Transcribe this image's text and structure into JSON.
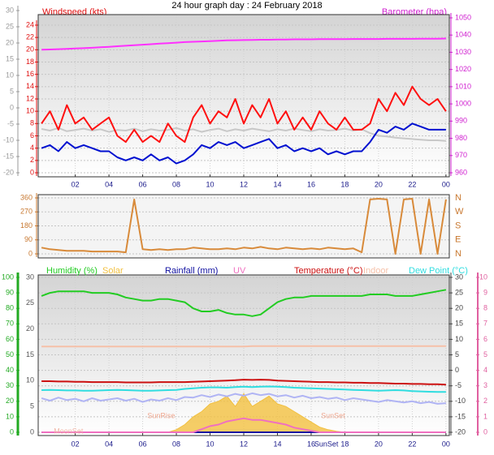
{
  "chart_data": [
    {
      "type": "line",
      "title": "24 hour graph day : 24 February 2018",
      "ylabel": "Windspeed (kts)",
      "y2label": "Barometer (hpa)",
      "grid": true,
      "x": [
        0,
        0.5,
        1,
        1.5,
        2,
        2.5,
        3,
        3.5,
        4,
        4.5,
        5,
        5.5,
        6,
        6.5,
        7,
        7.5,
        8,
        8.5,
        9,
        9.5,
        10,
        10.5,
        11,
        11.5,
        12,
        12.5,
        13,
        13.5,
        14,
        14.5,
        15,
        15.5,
        16,
        16.5,
        17,
        17.5,
        18,
        18.5,
        19,
        19.5,
        20,
        20.5,
        21,
        21.5,
        22,
        22.5,
        23,
        23.5,
        24
      ],
      "xlim": [
        -0.2,
        24.2
      ],
      "xticks": [
        {
          "value": 2,
          "label": "02"
        },
        {
          "value": 4,
          "label": "04"
        },
        {
          "value": 6,
          "label": "06"
        },
        {
          "value": 8,
          "label": "08"
        },
        10,
        12,
        14,
        16,
        18,
        20,
        22,
        {
          "value": 24,
          "label": "00"
        }
      ],
      "ylim": [
        0,
        24
      ],
      "yticks": [
        0,
        2,
        4,
        6,
        8,
        10,
        12,
        14,
        16,
        18,
        20,
        22,
        24
      ],
      "y2lim": [
        960,
        1050
      ],
      "y2ticks": [
        960,
        970,
        980,
        990,
        1000,
        1010,
        1020,
        1030,
        1040,
        1050
      ],
      "y3lim": [
        -20,
        30
      ],
      "y3ticks": [
        -20,
        -15,
        -10,
        -5,
        0,
        5,
        10,
        15,
        20,
        25,
        30
      ],
      "series": [
        {
          "color": "#c8c8c8",
          "axis": "y3",
          "values": [
            -6.5,
            -7,
            -6.2,
            -7.2,
            -6.8,
            -6.4,
            -7,
            -6.6,
            -7.4,
            -6.8,
            -7,
            -6.4,
            -7.2,
            -6.6,
            -7,
            -6.8,
            -6.2,
            -7,
            -6.6,
            -7.4,
            -6.8,
            -6.4,
            -7.2,
            -6.6,
            -7,
            -6.4,
            -6.8,
            -7.2,
            -6.6,
            -7,
            -6.4,
            -6.8,
            -7.2,
            -6.6,
            -7,
            -6.8,
            -6.4,
            -7,
            -6.6,
            -7.8,
            -8.6,
            -8.8,
            -9.2,
            -9.4,
            -9.6,
            -9.8,
            -10,
            -10,
            -10.2
          ]
        },
        {
          "color": "#ff1010",
          "values": [
            8,
            10,
            7,
            11,
            8,
            9,
            7,
            8,
            9,
            6,
            5,
            7,
            5,
            6,
            5,
            8,
            6,
            5,
            9,
            11,
            8,
            10,
            9,
            12,
            8,
            11,
            9,
            12,
            8,
            10,
            7,
            9,
            7,
            10,
            8,
            7,
            9,
            7,
            7,
            8,
            12,
            10,
            13,
            11,
            14,
            12,
            11,
            12,
            10
          ]
        },
        {
          "color": "#0010d0",
          "values": [
            4,
            4.5,
            3.5,
            5,
            4,
            4.5,
            4,
            3.5,
            3.5,
            2.5,
            2,
            2.5,
            2,
            3,
            2,
            2.5,
            1.5,
            2,
            3,
            4.5,
            4,
            5,
            4.5,
            5,
            4,
            4.5,
            5,
            5.5,
            4,
            4.5,
            3.5,
            4,
            3.5,
            4,
            3,
            3.5,
            3,
            3.5,
            3.5,
            5,
            7,
            6.5,
            7.5,
            7,
            8,
            7.5,
            7,
            7,
            7
          ]
        },
        {
          "color": "#ff30ff",
          "axis": "y2",
          "values": [
            1031.5,
            1031.6,
            1031.8,
            1032,
            1032.2,
            1032.4,
            1032.6,
            1032.9,
            1033.2,
            1033.5,
            1033.8,
            1034.1,
            1034.4,
            1034.7,
            1035,
            1035.3,
            1035.6,
            1035.9,
            1036.1,
            1036.3,
            1036.5,
            1036.7,
            1036.9,
            1037,
            1037.1,
            1037.2,
            1037.3,
            1037.3,
            1037.4,
            1037.4,
            1037.5,
            1037.5,
            1037.5,
            1037.6,
            1037.6,
            1037.6,
            1037.6,
            1037.7,
            1037.7,
            1037.7,
            1037.7,
            1037.8,
            1037.8,
            1037.8,
            1037.8,
            1037.9,
            1037.9,
            1037.9,
            1038
          ]
        }
      ]
    },
    {
      "type": "line",
      "grid": true,
      "x": [
        0,
        0.5,
        1,
        1.5,
        2,
        2.5,
        3,
        3.5,
        4,
        4.5,
        5,
        5.5,
        6,
        6.5,
        7,
        7.5,
        8,
        8.5,
        9,
        9.5,
        10,
        10.5,
        11,
        11.5,
        12,
        12.5,
        13,
        13.5,
        14,
        14.5,
        15,
        15.5,
        16,
        16.5,
        17,
        17.5,
        18,
        18.5,
        19,
        19.5,
        20,
        20.5,
        21,
        21.5,
        22,
        22.5,
        23,
        23.5,
        24
      ],
      "xlim": [
        -0.2,
        24.2
      ],
      "ylim": [
        0,
        360
      ],
      "yticks": [
        0,
        90,
        180,
        270,
        360
      ],
      "y2lim": [
        0,
        360
      ],
      "y2ticks": [
        {
          "value": 0,
          "label": "N"
        },
        {
          "value": 90,
          "label": "E"
        },
        {
          "value": 180,
          "label": "S"
        },
        {
          "value": 270,
          "label": "W"
        },
        {
          "value": 360,
          "label": "N"
        }
      ],
      "series": [
        {
          "color": "#d88a3a",
          "values": [
            40,
            30,
            25,
            20,
            20,
            20,
            15,
            15,
            15,
            15,
            10,
            350,
            30,
            25,
            30,
            25,
            30,
            30,
            40,
            35,
            30,
            30,
            35,
            30,
            40,
            35,
            45,
            35,
            30,
            40,
            35,
            30,
            35,
            30,
            40,
            35,
            30,
            35,
            10,
            350,
            355,
            350,
            0,
            350,
            355,
            0,
            350,
            0,
            350
          ]
        }
      ]
    },
    {
      "type": "line",
      "grid": true,
      "x": [
        0,
        0.5,
        1,
        1.5,
        2,
        2.5,
        3,
        3.5,
        4,
        4.5,
        5,
        5.5,
        6,
        6.5,
        7,
        7.5,
        8,
        8.5,
        9,
        9.5,
        10,
        10.5,
        11,
        11.5,
        12,
        12.5,
        13,
        13.5,
        14,
        14.5,
        15,
        15.5,
        16,
        16.5,
        17,
        17.5,
        18,
        18.5,
        19,
        19.5,
        20,
        20.5,
        21,
        21.5,
        22,
        22.5,
        23,
        23.5,
        24
      ],
      "xlim": [
        -0.2,
        24.2
      ],
      "xticks": [
        {
          "value": 2,
          "label": "02"
        },
        {
          "value": 4,
          "label": "04"
        },
        {
          "value": 6,
          "label": "06"
        },
        {
          "value": 8,
          "label": "08"
        },
        10,
        12,
        14,
        16,
        18,
        20,
        22,
        {
          "value": 24,
          "label": "00"
        }
      ],
      "ylim": [
        0,
        100
      ],
      "yticks": [
        0,
        10,
        20,
        30,
        40,
        50,
        60,
        70,
        80,
        90,
        100
      ],
      "y2lim": [
        -20,
        30
      ],
      "y2ticks": [
        -20,
        -15,
        -10,
        -5,
        0,
        5,
        10,
        15,
        20,
        25,
        30
      ],
      "y3lim": [
        0,
        30
      ],
      "y3ticks": [
        0,
        5,
        10,
        15,
        20,
        25,
        30
      ],
      "y4lim": [
        0,
        10
      ],
      "y4ticks": [
        0,
        1,
        2,
        3,
        4,
        5,
        6,
        7,
        8,
        9,
        10
      ],
      "annotations": [
        {
          "text": "MoonSet",
          "x": 1.6,
          "color": "#f0b8a8"
        },
        {
          "text": "SunRise",
          "x": 7.1,
          "color": "#f0a890"
        },
        {
          "text": "SunSet",
          "x": 17.3,
          "color": "#f0a890"
        },
        {
          "text": "SunSet",
          "x": 16.9,
          "color": "#1a1a8a"
        }
      ],
      "series": [
        {
          "name": "Humidity (%)",
          "color": "#22cc22",
          "values": [
            88,
            90,
            91,
            91,
            91,
            91,
            90,
            90,
            90,
            89,
            87,
            86,
            85,
            85,
            86,
            86,
            85,
            84,
            80,
            78,
            78,
            79,
            77,
            76,
            76,
            75,
            76,
            80,
            84,
            86,
            87,
            87,
            88,
            88,
            88,
            88,
            88,
            88,
            88,
            89,
            89,
            89,
            88,
            88,
            88,
            89,
            90,
            91,
            92
          ]
        },
        {
          "name": "Solar",
          "color": "#f2c040",
          "axis": "y3",
          "area": true,
          "values": [
            0,
            0,
            0,
            0,
            0,
            0,
            0,
            0,
            0,
            0,
            0,
            0,
            0,
            0,
            0,
            0,
            0.5,
            1.5,
            3,
            4,
            5.5,
            6,
            7,
            5,
            7.5,
            5,
            6,
            7,
            5.5,
            5,
            4,
            3,
            2,
            1,
            0.5,
            0.2,
            0,
            0,
            0,
            0,
            0,
            0,
            0,
            0,
            0,
            0,
            0,
            0,
            0
          ]
        },
        {
          "name": "Rainfall (mm)",
          "color": "#1010a0",
          "axis": "y3",
          "values": [
            0,
            0,
            0,
            0,
            0,
            0,
            0,
            0,
            0,
            0,
            0,
            0,
            0,
            0,
            0,
            0,
            0,
            0,
            0,
            0,
            0,
            0,
            0,
            0,
            0,
            0,
            0,
            0,
            0,
            0,
            0,
            0,
            0,
            0,
            0,
            0,
            0,
            0,
            0,
            0,
            0,
            0,
            0,
            0,
            0,
            0,
            0,
            0,
            0
          ]
        },
        {
          "name": "UV",
          "color": "#f070c0",
          "axis": "y4",
          "values": [
            0,
            0,
            0,
            0,
            0,
            0,
            0,
            0,
            0,
            0,
            0,
            0,
            0,
            0,
            0,
            0,
            0,
            0,
            0,
            0.2,
            0.4,
            0.5,
            0.7,
            0.8,
            0.9,
            0.8,
            0.8,
            0.7,
            0.6,
            0.5,
            0.3,
            0.2,
            0.1,
            0,
            0,
            0,
            0,
            0,
            0,
            0,
            0,
            0,
            0,
            0,
            0,
            0,
            0,
            0,
            0
          ]
        },
        {
          "name": "Temperature (°C)",
          "color": "#cc1010",
          "axis": "y2",
          "values": [
            -3.5,
            -3.5,
            -3.6,
            -3.6,
            -3.7,
            -3.7,
            -3.8,
            -3.8,
            -3.8,
            -3.8,
            -3.9,
            -3.9,
            -3.9,
            -3.9,
            -3.8,
            -3.8,
            -3.8,
            -3.8,
            -3.7,
            -3.6,
            -3.5,
            -3.4,
            -3.3,
            -3.2,
            -3.0,
            -3.1,
            -3.0,
            -3.1,
            -3.3,
            -3.4,
            -3.5,
            -3.6,
            -3.7,
            -3.8,
            -3.8,
            -3.9,
            -3.9,
            -4.0,
            -4.0,
            -4.1,
            -4.1,
            -4.2,
            -4.3,
            -4.3,
            -4.4,
            -4.4,
            -4.5,
            -4.5,
            -4.6
          ]
        },
        {
          "name": "Indoor",
          "color": "#f6c0a8",
          "axis": "y2",
          "values": [
            7.7,
            7.7,
            7.7,
            7.7,
            7.7,
            7.7,
            7.7,
            7.7,
            7.7,
            7.7,
            7.7,
            7.7,
            7.7,
            7.7,
            7.7,
            7.7,
            7.7,
            7.7,
            7.7,
            7.7,
            7.7,
            7.7,
            7.7,
            7.7,
            7.7,
            7.8,
            7.8,
            7.8,
            7.8,
            7.8,
            7.8,
            7.8,
            7.8,
            7.8,
            7.8,
            7.8,
            7.8,
            7.8,
            7.8,
            7.8,
            7.8,
            7.8,
            7.8,
            7.8,
            7.8,
            7.8,
            7.8,
            7.8,
            7.8
          ]
        },
        {
          "name": "Dew Point (°C)",
          "color": "#30dde0",
          "axis": "y2",
          "values": [
            -6.4,
            -6.3,
            -6.4,
            -6.5,
            -6.5,
            -6.6,
            -6.6,
            -6.5,
            -6.4,
            -6.3,
            -6.4,
            -6.5,
            -6.6,
            -6.6,
            -6.5,
            -6.4,
            -6.3,
            -6.0,
            -5.8,
            -5.6,
            -5.5,
            -5.5,
            -5.6,
            -5.4,
            -5.3,
            -5.4,
            -5.3,
            -5.2,
            -5.3,
            -5.4,
            -5.6,
            -5.7,
            -5.8,
            -5.9,
            -6.0,
            -6.1,
            -6.2,
            -6.3,
            -6.4,
            -6.5,
            -6.6,
            -6.5,
            -6.4,
            -6.5,
            -6.7,
            -6.8,
            -6.9,
            -7.0,
            -7.0
          ]
        },
        {
          "color": "#b0b4f4",
          "axis": "y2",
          "values": [
            -9.0,
            -9.8,
            -8.8,
            -9.6,
            -9.2,
            -10.0,
            -9.0,
            -9.8,
            -9.4,
            -9.0,
            -9.8,
            -9.2,
            -10.2,
            -9.4,
            -9.8,
            -9.0,
            -9.6,
            -8.6,
            -8.8,
            -8.0,
            -8.6,
            -7.8,
            -8.4,
            -7.6,
            -8.2,
            -7.4,
            -8.0,
            -7.6,
            -8.4,
            -8.0,
            -8.8,
            -8.2,
            -9.0,
            -8.6,
            -9.2,
            -8.8,
            -9.6,
            -9.0,
            -9.4,
            -9.8,
            -10.2,
            -9.6,
            -10.0,
            -10.4,
            -10.0,
            -10.6,
            -10.2,
            -10.8,
            -10.6
          ]
        }
      ]
    }
  ]
}
